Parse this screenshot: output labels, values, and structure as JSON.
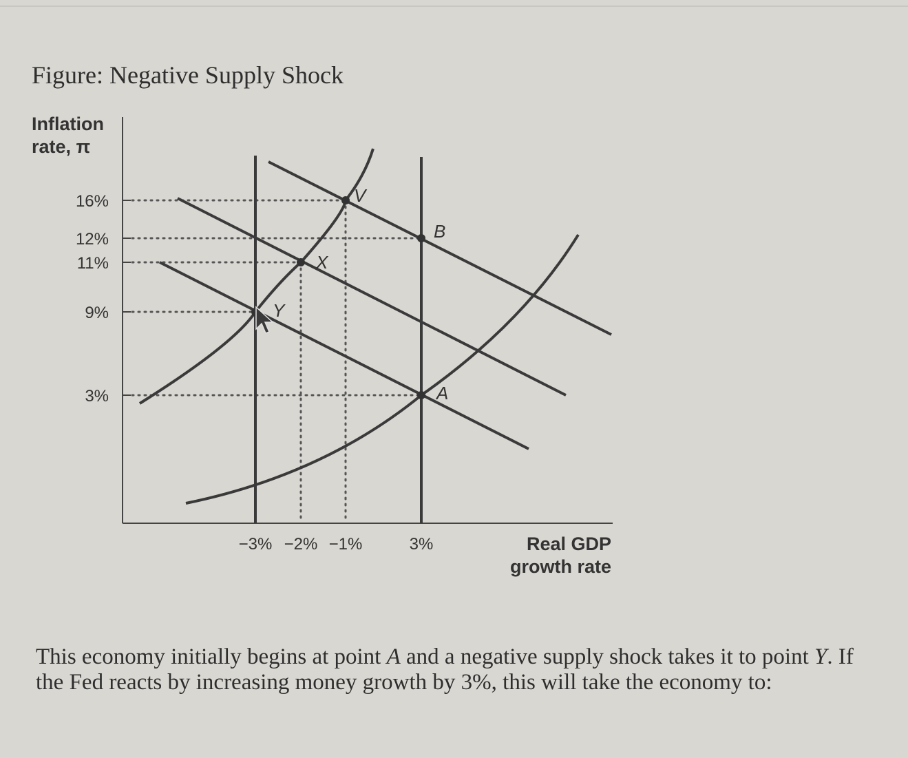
{
  "figure": {
    "title": "Figure: Negative Supply Shock"
  },
  "question": {
    "part1": "This economy initially begins at point ",
    "point_a": "A",
    "part2": " and a negative supply shock takes it to point ",
    "point_y": "Y",
    "part3": ". If the Fed reacts by increasing money growth by 3%, this will take the economy to:"
  },
  "chart_data": {
    "type": "line",
    "ylabel_line1": "Inflation",
    "ylabel_line2": "rate, π",
    "xlabel_line1": "Real GDP",
    "xlabel_line2": "growth rate",
    "x_ticks": [
      "−3%",
      "−2%",
      "−1%",
      "3%"
    ],
    "y_ticks": [
      "16%",
      "12%",
      "11%",
      "9%",
      "3%"
    ],
    "points": [
      {
        "label": "A",
        "x": 3,
        "y": 3
      },
      {
        "label": "B",
        "x": 3,
        "y": 12
      },
      {
        "label": "V",
        "x": -1,
        "y": 16
      },
      {
        "label": "X",
        "x": -2,
        "y": 11
      },
      {
        "label": "Y",
        "x": -3,
        "y": 9
      }
    ],
    "colors": {
      "curve": "#3a3a3a",
      "dotted": "#555555"
    }
  }
}
